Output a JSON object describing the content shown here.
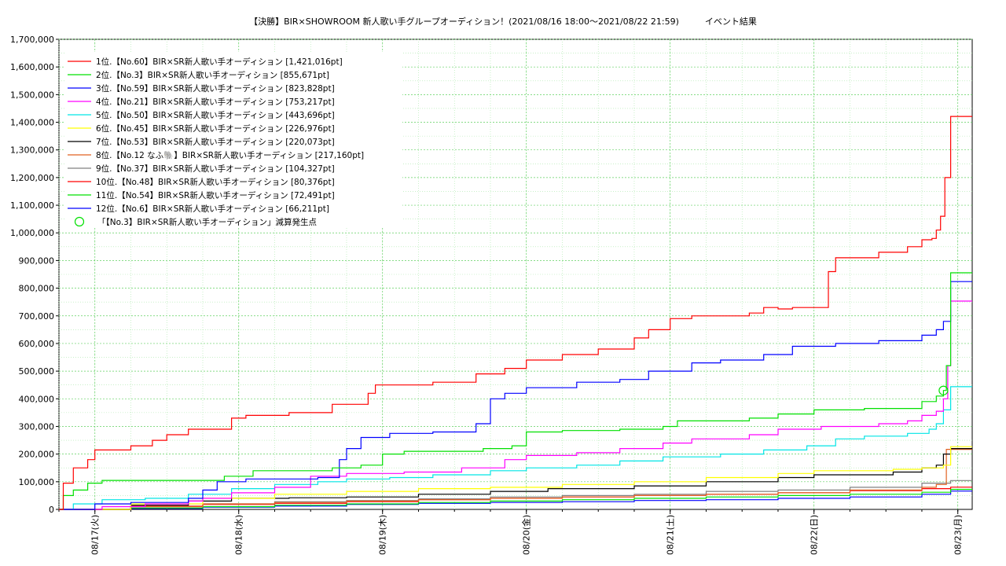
{
  "chart_data": {
    "type": "line",
    "title": "【決勝】BIR×SHOWROOM 新人歌い手グループオーディション！(2021/08/16 18:00～2021/08/22 21:59)　　　イベント結果",
    "xlabel": "",
    "ylabel": "",
    "x_range": [
      "2021-08-16 18:00",
      "2021-08-23 00:00"
    ],
    "ylim": [
      0,
      1700000
    ],
    "y_ticks": [
      "0",
      "100,000",
      "200,000",
      "300,000",
      "400,000",
      "500,000",
      "600,000",
      "700,000",
      "800,000",
      "900,000",
      "1,000,000",
      "1,100,000",
      "1,200,000",
      "1,300,000",
      "1,400,000",
      "1,500,000",
      "1,600,000",
      "1,700,000"
    ],
    "x_ticks": [
      {
        "t": 0.25,
        "label": "08/17(火)"
      },
      {
        "t": 1.25,
        "label": "08/18(水)"
      },
      {
        "t": 2.25,
        "label": "08/19(木)"
      },
      {
        "t": 3.25,
        "label": "08/20(金)"
      },
      {
        "t": 4.25,
        "label": "08/21(土)"
      },
      {
        "t": 5.25,
        "label": "08/22(日)"
      },
      {
        "t": 6.25,
        "label": "08/23(月)"
      }
    ],
    "grid": true,
    "legend_position": "top-left",
    "series": [
      {
        "name": "1位.【No.60】BIR×SR新人歌い手オーディション [1,421,016pt]",
        "color": "#ff0000",
        "points": [
          [
            0,
            0
          ],
          [
            0.03,
            95000
          ],
          [
            0.1,
            150000
          ],
          [
            0.2,
            180000
          ],
          [
            0.25,
            215000
          ],
          [
            0.5,
            230000
          ],
          [
            0.65,
            250000
          ],
          [
            0.75,
            270000
          ],
          [
            0.9,
            290000
          ],
          [
            1.2,
            330000
          ],
          [
            1.3,
            340000
          ],
          [
            1.6,
            350000
          ],
          [
            1.9,
            380000
          ],
          [
            2.15,
            420000
          ],
          [
            2.2,
            450000
          ],
          [
            2.6,
            460000
          ],
          [
            2.9,
            490000
          ],
          [
            3.1,
            510000
          ],
          [
            3.25,
            540000
          ],
          [
            3.5,
            560000
          ],
          [
            3.75,
            580000
          ],
          [
            4.0,
            620000
          ],
          [
            4.1,
            650000
          ],
          [
            4.25,
            690000
          ],
          [
            4.4,
            700000
          ],
          [
            4.8,
            710000
          ],
          [
            4.9,
            730000
          ],
          [
            5.0,
            725000
          ],
          [
            5.1,
            730000
          ],
          [
            5.35,
            860000
          ],
          [
            5.4,
            910000
          ],
          [
            5.7,
            930000
          ],
          [
            5.9,
            950000
          ],
          [
            6.0,
            975000
          ],
          [
            6.07,
            980000
          ],
          [
            6.1,
            1010000
          ],
          [
            6.13,
            1060000
          ],
          [
            6.16,
            1200000
          ],
          [
            6.2,
            1421016
          ],
          [
            6.35,
            1421016
          ]
        ]
      },
      {
        "name": "2位.【No.3】BIR×SR新人歌い手オーディション [855,671pt]",
        "color": "#00e000",
        "points": [
          [
            0,
            0
          ],
          [
            0.03,
            50000
          ],
          [
            0.1,
            70000
          ],
          [
            0.2,
            95000
          ],
          [
            0.3,
            105000
          ],
          [
            1.0,
            105000
          ],
          [
            1.15,
            120000
          ],
          [
            1.35,
            140000
          ],
          [
            1.9,
            150000
          ],
          [
            2.1,
            160000
          ],
          [
            2.25,
            200000
          ],
          [
            2.4,
            210000
          ],
          [
            2.8,
            210000
          ],
          [
            2.95,
            220000
          ],
          [
            3.15,
            230000
          ],
          [
            3.25,
            280000
          ],
          [
            3.5,
            285000
          ],
          [
            3.9,
            290000
          ],
          [
            4.2,
            300000
          ],
          [
            4.3,
            320000
          ],
          [
            4.8,
            330000
          ],
          [
            5.0,
            345000
          ],
          [
            5.25,
            360000
          ],
          [
            5.6,
            365000
          ],
          [
            5.9,
            365000
          ],
          [
            6.0,
            390000
          ],
          [
            6.1,
            410000
          ],
          [
            6.15,
            430000
          ],
          [
            6.17,
            520000
          ],
          [
            6.2,
            855671
          ],
          [
            6.35,
            855671
          ]
        ]
      },
      {
        "name": "3位.【No.59】BIR×SR新人歌い手オーディション [823,828pt]",
        "color": "#0000ff",
        "points": [
          [
            0,
            0
          ],
          [
            0.25,
            20000
          ],
          [
            0.5,
            25000
          ],
          [
            0.9,
            40000
          ],
          [
            1.0,
            70000
          ],
          [
            1.1,
            100000
          ],
          [
            1.3,
            110000
          ],
          [
            1.8,
            115000
          ],
          [
            1.95,
            180000
          ],
          [
            2.0,
            220000
          ],
          [
            2.1,
            260000
          ],
          [
            2.3,
            275000
          ],
          [
            2.6,
            280000
          ],
          [
            2.9,
            310000
          ],
          [
            3.0,
            400000
          ],
          [
            3.1,
            420000
          ],
          [
            3.25,
            440000
          ],
          [
            3.6,
            460000
          ],
          [
            3.9,
            470000
          ],
          [
            4.1,
            500000
          ],
          [
            4.4,
            530000
          ],
          [
            4.6,
            540000
          ],
          [
            4.9,
            560000
          ],
          [
            5.1,
            590000
          ],
          [
            5.4,
            600000
          ],
          [
            5.7,
            610000
          ],
          [
            6.0,
            630000
          ],
          [
            6.1,
            650000
          ],
          [
            6.15,
            680000
          ],
          [
            6.2,
            823828
          ],
          [
            6.35,
            823828
          ]
        ]
      },
      {
        "name": "4位.【No.21】BIR×SR新人歌い手オーディション [753,217pt]",
        "color": "#ff00ff",
        "points": [
          [
            0,
            0
          ],
          [
            0.3,
            10000
          ],
          [
            0.6,
            20000
          ],
          [
            0.9,
            30000
          ],
          [
            1.0,
            40000
          ],
          [
            1.2,
            60000
          ],
          [
            1.5,
            80000
          ],
          [
            1.75,
            120000
          ],
          [
            2.0,
            130000
          ],
          [
            2.4,
            135000
          ],
          [
            2.8,
            150000
          ],
          [
            3.1,
            180000
          ],
          [
            3.25,
            195000
          ],
          [
            3.6,
            205000
          ],
          [
            3.9,
            220000
          ],
          [
            4.2,
            240000
          ],
          [
            4.4,
            255000
          ],
          [
            4.8,
            270000
          ],
          [
            5.0,
            290000
          ],
          [
            5.3,
            300000
          ],
          [
            5.7,
            310000
          ],
          [
            5.9,
            320000
          ],
          [
            6.0,
            340000
          ],
          [
            6.1,
            355000
          ],
          [
            6.15,
            400000
          ],
          [
            6.18,
            520000
          ],
          [
            6.2,
            753217
          ],
          [
            6.35,
            753217
          ]
        ]
      },
      {
        "name": "5位.【No.50】BIR×SR新人歌い手オーディション [443,696pt]",
        "color": "#00e5e5",
        "points": [
          [
            0,
            0
          ],
          [
            0.1,
            20000
          ],
          [
            0.3,
            35000
          ],
          [
            0.6,
            40000
          ],
          [
            0.9,
            55000
          ],
          [
            1.2,
            75000
          ],
          [
            1.5,
            90000
          ],
          [
            1.8,
            100000
          ],
          [
            2.0,
            110000
          ],
          [
            2.3,
            115000
          ],
          [
            2.6,
            125000
          ],
          [
            3.0,
            140000
          ],
          [
            3.25,
            150000
          ],
          [
            3.6,
            160000
          ],
          [
            3.9,
            175000
          ],
          [
            4.2,
            190000
          ],
          [
            4.6,
            200000
          ],
          [
            4.9,
            215000
          ],
          [
            5.2,
            230000
          ],
          [
            5.4,
            255000
          ],
          [
            5.6,
            265000
          ],
          [
            5.9,
            275000
          ],
          [
            6.05,
            290000
          ],
          [
            6.1,
            310000
          ],
          [
            6.15,
            360000
          ],
          [
            6.2,
            443696
          ],
          [
            6.35,
            443696
          ]
        ]
      },
      {
        "name": "6位.【No.45】BIR×SR新人歌い手オーディション [226,976pt]",
        "color": "#ffff00",
        "points": [
          [
            0,
            0
          ],
          [
            0.5,
            20000
          ],
          [
            1.0,
            40000
          ],
          [
            1.5,
            55000
          ],
          [
            2.0,
            65000
          ],
          [
            2.5,
            75000
          ],
          [
            3.0,
            80000
          ],
          [
            3.5,
            90000
          ],
          [
            4.0,
            100000
          ],
          [
            4.5,
            115000
          ],
          [
            5.0,
            130000
          ],
          [
            5.25,
            140000
          ],
          [
            5.8,
            145000
          ],
          [
            6.0,
            150000
          ],
          [
            6.15,
            160000
          ],
          [
            6.2,
            226976
          ],
          [
            6.35,
            226976
          ]
        ]
      },
      {
        "name": "7位.【No.53】BIR×SR新人歌い手オーディション [220,073pt]",
        "color": "#000000",
        "points": [
          [
            0,
            0
          ],
          [
            0.5,
            15000
          ],
          [
            0.9,
            30000
          ],
          [
            1.2,
            40000
          ],
          [
            1.6,
            42000
          ],
          [
            2.0,
            45000
          ],
          [
            2.5,
            55000
          ],
          [
            3.0,
            65000
          ],
          [
            3.4,
            75000
          ],
          [
            4.0,
            85000
          ],
          [
            4.5,
            100000
          ],
          [
            5.0,
            115000
          ],
          [
            5.25,
            125000
          ],
          [
            5.8,
            135000
          ],
          [
            6.0,
            150000
          ],
          [
            6.1,
            160000
          ],
          [
            6.15,
            200000
          ],
          [
            6.2,
            220073
          ],
          [
            6.35,
            220073
          ]
        ]
      },
      {
        "name": "8位.【No.12 なふ🐘】BIR×SR新人歌い手オーディション [217,160pt]",
        "color": "#e06020",
        "points": [
          [
            0,
            0
          ],
          [
            0.5,
            10000
          ],
          [
            1.0,
            20000
          ],
          [
            1.5,
            25000
          ],
          [
            2.0,
            30000
          ],
          [
            2.5,
            35000
          ],
          [
            3.0,
            40000
          ],
          [
            3.5,
            45000
          ],
          [
            4.0,
            50000
          ],
          [
            4.5,
            55000
          ],
          [
            5.0,
            60000
          ],
          [
            5.5,
            70000
          ],
          [
            6.0,
            80000
          ],
          [
            6.1,
            90000
          ],
          [
            6.17,
            217160
          ],
          [
            6.35,
            217160
          ]
        ]
      },
      {
        "name": "9位.【No.37】BIR×SR新人歌い手オーディション [104,327pt]",
        "color": "#808080",
        "points": [
          [
            0,
            0
          ],
          [
            0.5,
            10000
          ],
          [
            1.0,
            20000
          ],
          [
            1.5,
            28000
          ],
          [
            2.0,
            32000
          ],
          [
            2.5,
            38000
          ],
          [
            3.0,
            45000
          ],
          [
            3.5,
            50000
          ],
          [
            4.0,
            55000
          ],
          [
            4.5,
            65000
          ],
          [
            5.0,
            70000
          ],
          [
            5.5,
            80000
          ],
          [
            6.0,
            95000
          ],
          [
            6.2,
            104327
          ],
          [
            6.35,
            104327
          ]
        ]
      },
      {
        "name": "10位.【No.48】BIR×SR新人歌い手オーディション [80,376pt]",
        "color": "#ff0000",
        "points": [
          [
            0,
            0
          ],
          [
            0.5,
            12000
          ],
          [
            1.0,
            18000
          ],
          [
            1.5,
            22000
          ],
          [
            2.0,
            28000
          ],
          [
            2.5,
            35000
          ],
          [
            3.0,
            40000
          ],
          [
            3.5,
            45000
          ],
          [
            4.0,
            50000
          ],
          [
            4.5,
            55000
          ],
          [
            5.0,
            60000
          ],
          [
            5.5,
            68000
          ],
          [
            6.0,
            75000
          ],
          [
            6.2,
            80376
          ],
          [
            6.35,
            80376
          ]
        ]
      },
      {
        "name": "11位.【No.54】BIR×SR新人歌い手オーディション [72,491pt]",
        "color": "#00e000",
        "points": [
          [
            0,
            0
          ],
          [
            0.5,
            5000
          ],
          [
            1.0,
            10000
          ],
          [
            1.5,
            15000
          ],
          [
            2.0,
            20000
          ],
          [
            2.5,
            25000
          ],
          [
            3.0,
            30000
          ],
          [
            3.5,
            35000
          ],
          [
            4.0,
            40000
          ],
          [
            4.5,
            45000
          ],
          [
            5.0,
            50000
          ],
          [
            5.5,
            55000
          ],
          [
            6.0,
            62000
          ],
          [
            6.2,
            72491
          ],
          [
            6.35,
            72491
          ]
        ]
      },
      {
        "name": "12位.【No.6】BIR×SR新人歌い手オーディション [66,211pt]",
        "color": "#0000ff",
        "points": [
          [
            0,
            0
          ],
          [
            0.5,
            3000
          ],
          [
            1.0,
            8000
          ],
          [
            1.5,
            12000
          ],
          [
            2.0,
            18000
          ],
          [
            2.5,
            22000
          ],
          [
            3.0,
            25000
          ],
          [
            3.5,
            28000
          ],
          [
            4.0,
            32000
          ],
          [
            4.5,
            35000
          ],
          [
            5.0,
            40000
          ],
          [
            5.5,
            45000
          ],
          [
            6.0,
            55000
          ],
          [
            6.2,
            66211
          ],
          [
            6.35,
            66211
          ]
        ]
      }
    ],
    "markers": [
      {
        "name": "「【No.3】BIR×SR新人歌い手オーディション」減算発生点",
        "color": "#00e000",
        "points": [
          [
            6.15,
            430000
          ]
        ]
      }
    ]
  }
}
